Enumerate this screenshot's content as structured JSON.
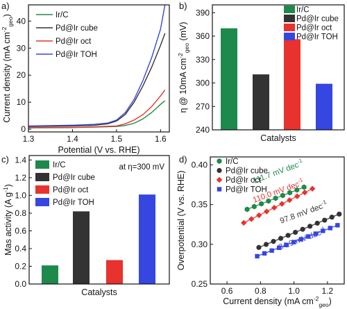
{
  "colors": {
    "ir_c": "#1d8a4c",
    "cube": "#333333",
    "oct": "#e8322d",
    "toh": "#3646e0"
  },
  "chart_data": [
    {
      "panel_label": "a)",
      "type": "line",
      "xlabel": "Potential (V vs. RHE)",
      "ylabel": "Current density (mA cm",
      "ylabel_sup": "-2",
      "ylabel_sub": "geo",
      "ylabel_end": ")",
      "xlim": [
        1.3,
        1.62
      ],
      "ylim": [
        -1,
        46
      ],
      "xticks": [
        "1.3",
        "1.4",
        "1.5",
        "1.6"
      ],
      "xtick_values": [
        1.3,
        1.4,
        1.5,
        1.6
      ],
      "yticks": [
        "0",
        "10",
        "20",
        "30",
        "40"
      ],
      "ytick_values": [
        0,
        10,
        20,
        30,
        40
      ],
      "legend_position": "top-left",
      "series": [
        {
          "name": "Ir/C",
          "color_key": "ir_c",
          "x": [
            1.3,
            1.4,
            1.45,
            1.5,
            1.52,
            1.54,
            1.56,
            1.58,
            1.6,
            1.61
          ],
          "y": [
            0.5,
            0.6,
            0.8,
            1.0,
            1.4,
            2.2,
            3.8,
            6.2,
            9.2,
            10.5
          ]
        },
        {
          "name": "Pd@Ir cube",
          "color_key": "cube",
          "x": [
            1.3,
            1.4,
            1.45,
            1.48,
            1.5,
            1.52,
            1.54,
            1.56,
            1.58,
            1.6,
            1.61
          ],
          "y": [
            1.0,
            1.2,
            1.5,
            2.0,
            3.0,
            5.5,
            10.0,
            16.0,
            23.0,
            31.0,
            35.5
          ]
        },
        {
          "name": "Pd@Ir oct",
          "color_key": "oct",
          "x": [
            1.3,
            1.4,
            1.45,
            1.5,
            1.52,
            1.54,
            1.56,
            1.58,
            1.6,
            1.61
          ],
          "y": [
            0.6,
            0.7,
            0.9,
            1.2,
            2.0,
            3.4,
            5.4,
            8.4,
            12.3,
            14.5
          ]
        },
        {
          "name": "Pd@Ir TOH",
          "color_key": "toh",
          "x": [
            1.3,
            1.4,
            1.45,
            1.48,
            1.5,
            1.52,
            1.54,
            1.56,
            1.58,
            1.6,
            1.61
          ],
          "y": [
            1.2,
            1.5,
            1.8,
            2.3,
            3.4,
            6.2,
            11.0,
            18.0,
            26.5,
            37.0,
            46.0
          ]
        }
      ]
    },
    {
      "panel_label": "b)",
      "type": "bar",
      "xlabel": "Catalysts",
      "ylabel": "η @ 10mA cm",
      "ylabel_sup": "-2",
      "ylabel_sub": "geo",
      "ylabel_end": " (mV)",
      "ylim": [
        240,
        400
      ],
      "yticks": [
        "240",
        "270",
        "300",
        "330",
        "360",
        "390"
      ],
      "ytick_values": [
        240,
        270,
        300,
        330,
        360,
        390
      ],
      "legend_position": "top-right",
      "categories": [
        "Ir/C",
        "Pd@Ir cube",
        "Pd@Ir oct",
        "Pd@Ir TOH"
      ],
      "color_keys": [
        "ir_c",
        "cube",
        "oct",
        "toh"
      ],
      "values": [
        370,
        311,
        356,
        299
      ]
    },
    {
      "panel_label": "c)",
      "type": "bar",
      "xlabel": "Catalysts",
      "ylabel": "Mas  activity (A g",
      "ylabel_sup": "-1",
      "ylabel_sub": "",
      "ylabel_end": ")",
      "annotation": "at η=300 mV",
      "ylim": [
        0,
        1.45
      ],
      "yticks": [
        "0.0",
        "0.2",
        "0.4",
        "0.6",
        "0.8",
        "1.0",
        "1.2",
        "1.4"
      ],
      "ytick_values": [
        0,
        0.2,
        0.4,
        0.6,
        0.8,
        1.0,
        1.2,
        1.4
      ],
      "legend_position": "top-left",
      "categories": [
        "Ir/C",
        "Pd@Ir cube",
        "Pd@Ir oct",
        "Pd@Ir TOH"
      ],
      "color_keys": [
        "ir_c",
        "cube",
        "oct",
        "toh"
      ],
      "values": [
        0.21,
        0.82,
        0.27,
        1.01
      ]
    },
    {
      "panel_label": "d)",
      "type": "scatter",
      "xlabel": "Current density (mA cm",
      "xlabel_sup": "-2",
      "xlabel_sub": "geo",
      "xlabel_end": ")",
      "ylabel": "Overpotential (V vs. RHE)",
      "xlim": [
        0.5,
        1.3
      ],
      "ylim": [
        0.25,
        0.41
      ],
      "xticks": [
        "0.6",
        "0.8",
        "1.0",
        "1.2"
      ],
      "xtick_values": [
        0.6,
        0.8,
        1.0,
        1.2
      ],
      "yticks": [
        "0.25",
        "0.30",
        "0.35",
        "0.40"
      ],
      "ytick_values": [
        0.25,
        0.3,
        0.35,
        0.4
      ],
      "legend_position": "top-left",
      "series": [
        {
          "name": "Ir/C",
          "color_key": "ir_c",
          "marker": "hexagon",
          "x_start": 0.72,
          "x_end": 1.06,
          "n": 9,
          "y_start": 0.344,
          "y_end": 0.372,
          "slope_label": "111.7 mV dec",
          "slope_sup": "-1"
        },
        {
          "name": "Pd@Ir cube",
          "color_key": "cube",
          "marker": "circle",
          "x_start": 0.79,
          "x_end": 1.27,
          "n": 12,
          "y_start": 0.296,
          "y_end": 0.338,
          "slope_label": "97.8 mV dec",
          "slope_sup": "-1"
        },
        {
          "name": "Pd@Ir oct",
          "color_key": "oct",
          "marker": "diamond",
          "x_start": 0.7,
          "x_end": 1.11,
          "n": 10,
          "y_start": 0.327,
          "y_end": 0.37,
          "slope_label": "110.0 mV dec",
          "slope_sup": "-1"
        },
        {
          "name": "Pd@Ir TOH",
          "color_key": "toh",
          "marker": "square",
          "x_start": 0.78,
          "x_end": 1.26,
          "n": 12,
          "y_start": 0.285,
          "y_end": 0.324,
          "slope_label": "84.9 mV dec",
          "slope_sup": "-1"
        }
      ]
    }
  ]
}
